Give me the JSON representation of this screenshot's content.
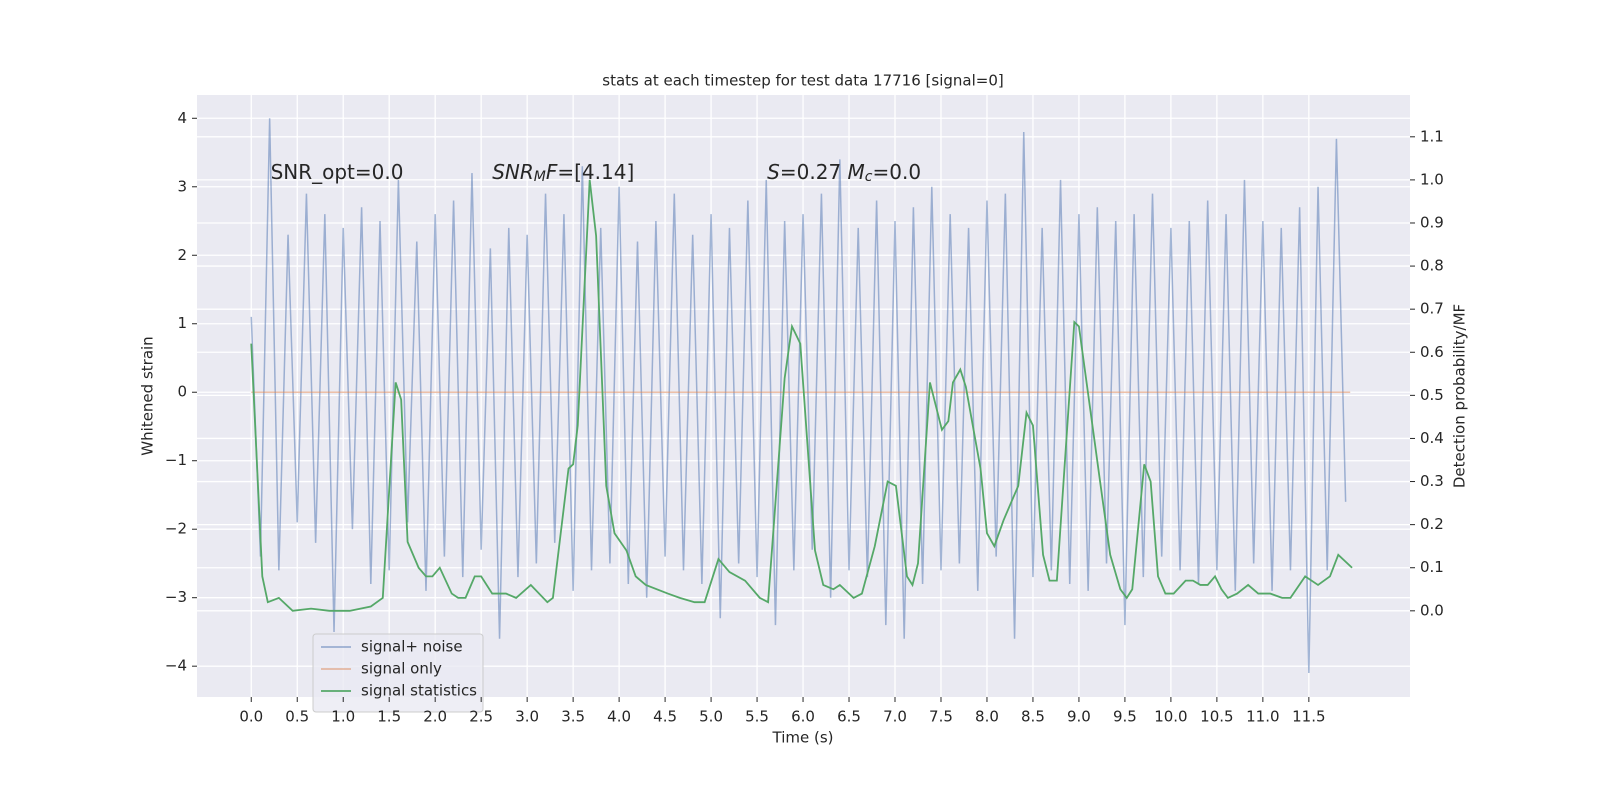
{
  "chart_data": {
    "type": "line",
    "title": "stats at each timestep for test data 17716 [signal=0]",
    "xlabel": "Time (s)",
    "ylabel": "Whitened strain",
    "y2label": "Detection probability/MF",
    "xlim": [
      -0.59,
      12.6
    ],
    "ylim": [
      -4.45,
      4.34
    ],
    "y2lim": [
      -0.2,
      1.197
    ],
    "xticks": [
      {
        "value": 0,
        "label": "0.0"
      },
      0.5,
      {
        "value": 1,
        "label": "1.0"
      },
      1.5,
      {
        "value": 2,
        "label": "2.0"
      },
      2.5,
      {
        "value": 3,
        "label": "3.0"
      },
      3.5,
      {
        "value": 4,
        "label": "4.0"
      },
      4.5,
      {
        "value": 5,
        "label": "5.0"
      },
      5.5,
      {
        "value": 6,
        "label": "6.0"
      },
      6.5,
      {
        "value": 7,
        "label": "7.0"
      },
      7.5,
      {
        "value": 8,
        "label": "8.0"
      },
      8.5,
      {
        "value": 9,
        "label": "9.0"
      },
      9.5,
      {
        "value": 10,
        "label": "10.0"
      },
      10.5,
      {
        "value": 11,
        "label": "11.0"
      },
      11.5
    ],
    "yticks": [
      {
        "value": -4,
        "label": "−4"
      },
      {
        "value": -3,
        "label": "−3"
      },
      {
        "value": -2,
        "label": "−2"
      },
      {
        "value": -1,
        "label": "−1"
      },
      0,
      1,
      2,
      3,
      4
    ],
    "y2ticks": [
      {
        "value": 0,
        "label": "0.0"
      },
      0.1,
      0.2,
      0.3,
      0.4,
      0.5,
      0.6,
      0.7,
      0.8,
      0.9,
      {
        "value": 1,
        "label": "1.0"
      },
      1.1
    ],
    "grid": true,
    "legend_loc": "lower left",
    "series": [
      {
        "name": "signal+ noise",
        "color": "#4c72b0",
        "opacity": 0.5,
        "x": [
          0,
          0.1,
          0.2,
          0.3,
          0.4,
          0.5,
          0.6,
          0.7,
          0.8,
          0.9,
          1,
          1.1,
          1.2,
          1.3,
          1.4,
          1.5,
          1.6,
          1.7,
          1.8,
          1.9,
          2,
          2.1,
          2.2,
          2.3,
          2.4,
          2.5,
          2.6,
          2.7,
          2.8,
          2.9,
          3,
          3.1,
          3.2,
          3.3,
          3.4,
          3.5,
          3.6,
          3.7,
          3.8,
          3.9,
          4,
          4.1,
          4.2,
          4.3,
          4.4,
          4.5,
          4.6,
          4.7,
          4.8,
          4.9,
          5,
          5.1,
          5.2,
          5.3,
          5.4,
          5.5,
          5.6,
          5.7,
          5.8,
          5.9,
          6,
          6.1,
          6.2,
          6.3,
          6.4,
          6.5,
          6.6,
          6.7,
          6.8,
          6.9,
          7,
          7.1,
          7.2,
          7.3,
          7.4,
          7.5,
          7.6,
          7.7,
          7.8,
          7.9,
          8,
          8.1,
          8.2,
          8.3,
          8.4,
          8.5,
          8.6,
          8.7,
          8.8,
          8.9,
          9,
          9.1,
          9.2,
          9.3,
          9.4,
          9.5,
          9.6,
          9.7,
          9.8,
          9.9,
          10,
          10.1,
          10.2,
          10.3,
          10.4,
          10.5,
          10.6,
          10.7,
          10.8,
          10.9,
          11,
          11.1,
          11.2,
          11.3,
          11.4,
          11.5,
          11.6,
          11.7,
          11.8,
          11.9
        ],
        "values": [
          1.1,
          -2.4,
          4.0,
          -2.6,
          2.3,
          -1.9,
          2.9,
          -2.2,
          2.6,
          -3.5,
          2.4,
          -2.0,
          2.7,
          -2.8,
          2.5,
          -2.6,
          3.1,
          -1.9,
          2.2,
          -2.9,
          2.6,
          -2.4,
          2.8,
          -2.7,
          3.2,
          -2.3,
          2.1,
          -3.6,
          2.4,
          -2.7,
          2.3,
          -2.5,
          2.9,
          -2.2,
          2.6,
          -2.9,
          3.3,
          -2.6,
          2.4,
          -2.5,
          3.0,
          -2.8,
          2.2,
          -3.0,
          2.5,
          -2.4,
          2.9,
          -2.6,
          2.3,
          -2.8,
          2.6,
          -3.3,
          2.4,
          -2.5,
          2.8,
          -2.7,
          3.1,
          -3.4,
          2.5,
          -2.6,
          2.6,
          -2.3,
          2.9,
          -3.0,
          3.4,
          -2.6,
          2.4,
          -2.7,
          2.8,
          -3.4,
          2.5,
          -3.6,
          2.7,
          -2.8,
          3.0,
          -2.6,
          2.6,
          -2.5,
          2.4,
          -2.9,
          2.8,
          -2.4,
          2.9,
          -3.6,
          3.8,
          -2.7,
          2.4,
          -2.6,
          3.1,
          -2.8,
          2.6,
          -2.9,
          2.7,
          -2.5,
          2.5,
          -3.4,
          2.6,
          -2.7,
          2.9,
          -2.4,
          2.4,
          -2.6,
          2.5,
          -2.8,
          2.8,
          -2.6,
          2.6,
          -2.9,
          3.1,
          -2.5,
          2.5,
          -2.9,
          2.4,
          -2.6,
          2.7,
          -4.1,
          3.0,
          -2.6,
          3.7,
          -1.6
        ]
      },
      {
        "name": "signal only",
        "color": "#dd8452",
        "opacity": 0.5,
        "x": [
          0,
          11.95
        ],
        "values": [
          0,
          0
        ]
      },
      {
        "name": "signal statistics",
        "color": "#55a868",
        "opacity": 1,
        "axis": "y2",
        "x": [
          0,
          0.12,
          0.18,
          0.3,
          0.45,
          0.65,
          0.85,
          1.07,
          1.3,
          1.43,
          1.57,
          1.63,
          1.7,
          1.82,
          1.9,
          1.97,
          2.05,
          2.18,
          2.25,
          2.33,
          2.43,
          2.5,
          2.62,
          2.77,
          2.88,
          3.04,
          3.22,
          3.28,
          3.45,
          3.5,
          3.55,
          3.68,
          3.75,
          3.86,
          3.95,
          4.08,
          4.18,
          4.29,
          4.53,
          4.66,
          4.82,
          4.93,
          5.08,
          5.2,
          5.37,
          5.53,
          5.62,
          5.8,
          5.88,
          5.97,
          6.13,
          6.22,
          6.33,
          6.4,
          6.55,
          6.64,
          6.78,
          6.92,
          7.01,
          7.13,
          7.19,
          7.25,
          7.38,
          7.51,
          7.58,
          7.63,
          7.71,
          7.77,
          7.93,
          8.0,
          8.08,
          8.18,
          8.34,
          8.43,
          8.5,
          8.61,
          8.68,
          8.76,
          8.95,
          9.0,
          9.23,
          9.34,
          9.45,
          9.52,
          9.58,
          9.71,
          9.78,
          9.86,
          9.94,
          10.03,
          10.16,
          10.24,
          10.32,
          10.4,
          10.48,
          10.55,
          10.62,
          10.72,
          10.84,
          10.95,
          11.08,
          11.21,
          11.3,
          11.46,
          11.6,
          11.73,
          11.82,
          11.97
        ],
        "values": [
          0.62,
          0.08,
          0.02,
          0.03,
          0,
          0.005,
          0,
          0,
          0.01,
          0.03,
          0.53,
          0.49,
          0.16,
          0.1,
          0.08,
          0.08,
          0.1,
          0.04,
          0.03,
          0.03,
          0.08,
          0.08,
          0.04,
          0.04,
          0.03,
          0.06,
          0.02,
          0.03,
          0.33,
          0.34,
          0.43,
          1.0,
          0.87,
          0.29,
          0.18,
          0.14,
          0.08,
          0.06,
          0.04,
          0.03,
          0.02,
          0.02,
          0.12,
          0.09,
          0.07,
          0.03,
          0.02,
          0.54,
          0.66,
          0.62,
          0.14,
          0.06,
          0.05,
          0.06,
          0.03,
          0.04,
          0.15,
          0.3,
          0.29,
          0.08,
          0.06,
          0.11,
          0.53,
          0.42,
          0.44,
          0.53,
          0.56,
          0.52,
          0.33,
          0.18,
          0.15,
          0.21,
          0.29,
          0.46,
          0.43,
          0.13,
          0.07,
          0.07,
          0.67,
          0.66,
          0.3,
          0.13,
          0.05,
          0.03,
          0.05,
          0.34,
          0.3,
          0.08,
          0.04,
          0.04,
          0.07,
          0.07,
          0.06,
          0.06,
          0.08,
          0.05,
          0.03,
          0.04,
          0.06,
          0.04,
          0.04,
          0.03,
          0.03,
          0.08,
          0.06,
          0.08,
          0.13,
          0.1
        ]
      }
    ],
    "annotations": [
      {
        "x": 0.21,
        "y": 3.2,
        "parts": [
          {
            "text": "SNR_opt=0.0",
            "style": "normal"
          }
        ]
      },
      {
        "x": 2.62,
        "y": 3.2,
        "parts": [
          {
            "text": "SNR",
            "style": "italic"
          },
          {
            "text": "M",
            "style": "sub"
          },
          {
            "text": "F",
            "style": "italic"
          },
          {
            "text": "=[4.14]",
            "style": "normal"
          }
        ]
      },
      {
        "x": 5.61,
        "y": 3.2,
        "parts": [
          {
            "text": "S",
            "style": "italic"
          },
          {
            "text": "=0.27   ",
            "style": "normal"
          },
          {
            "text": "M",
            "style": "italic"
          },
          {
            "text": "c",
            "style": "sub"
          },
          {
            "text": "=0.0",
            "style": "normal"
          }
        ]
      }
    ]
  }
}
